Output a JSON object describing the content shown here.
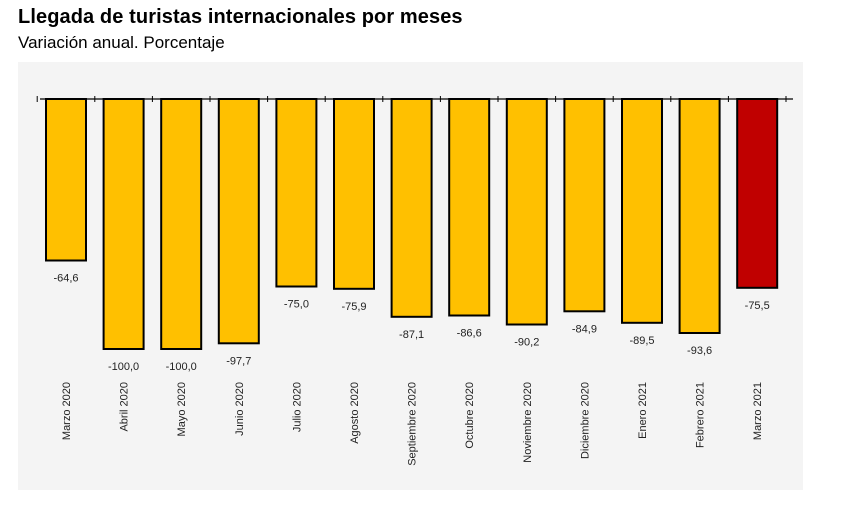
{
  "title": "Llegada de turistas internacionales por meses",
  "subtitle": "Variación anual. Porcentaje",
  "colors": {
    "default_bar": "#FFC000",
    "highlight_bar": "#C00000",
    "bar_border": "#000000",
    "background": "#f4f4f4"
  },
  "chart_data": {
    "type": "bar",
    "title": "Llegada de turistas internacionales por meses",
    "subtitle": "Variación anual. Porcentaje",
    "xlabel": "",
    "ylabel": "",
    "ylim": [
      -110,
      0
    ],
    "grid": false,
    "legend": "none",
    "categories": [
      "Marzo 2020",
      "Abril 2020",
      "Mayo 2020",
      "Junio 2020",
      "Julio 2020",
      "Agosto 2020",
      "Septiembre 2020",
      "Octubre 2020",
      "Noviembre 2020",
      "Diciembre 2020",
      "Enero 2021",
      "Febrero 2021",
      "Marzo 2021"
    ],
    "values": [
      -64.6,
      -100.0,
      -100.0,
      -97.7,
      -75.0,
      -75.9,
      -87.1,
      -86.6,
      -90.2,
      -84.9,
      -89.5,
      -93.6,
      -75.5
    ],
    "value_labels": [
      "-64,6",
      "-100,0",
      "-100,0",
      "-97,7",
      "-75,0",
      "-75,9",
      "-87,1",
      "-86,6",
      "-90,2",
      "-84,9",
      "-89,5",
      "-93,6",
      "-75,5"
    ],
    "highlight_index": 12
  }
}
